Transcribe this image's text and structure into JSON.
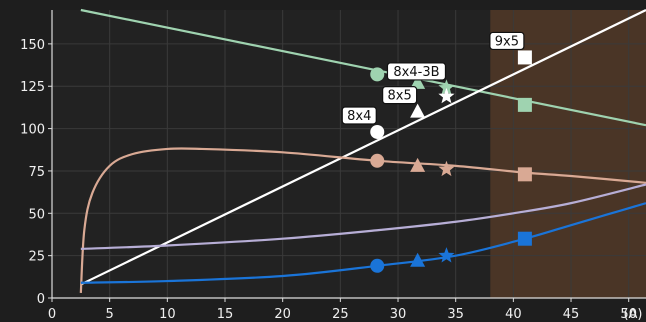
{
  "chart_data": {
    "type": "line",
    "title": "",
    "xlabel": "",
    "ylabel": "",
    "x_unit_label": "(A)",
    "xlim": [
      0,
      51.5
    ],
    "ylim": [
      0,
      170
    ],
    "xticks": [
      0,
      5,
      10,
      15,
      20,
      25,
      30,
      35,
      40,
      45,
      50
    ],
    "yticks": [
      0,
      25,
      50,
      75,
      100,
      125,
      150
    ],
    "grid": true,
    "shaded_region": {
      "x_from": 38,
      "x_to": 51.5,
      "color": "#4a3526"
    },
    "series": [
      {
        "color": "#9fd3b0",
        "line": {
          "x": [
            2.5,
            51.5
          ],
          "y": [
            170,
            102
          ]
        }
      },
      {
        "color": "#ffffff",
        "line": {
          "x": [
            2.5,
            51.5
          ],
          "y": [
            8,
            170
          ]
        }
      },
      {
        "color": "#d9a994",
        "line": {
          "x": [
            2.5,
            2.8,
            3.5,
            5,
            7,
            10,
            13,
            20,
            28.2,
            35,
            41,
            45,
            51.5
          ],
          "y": [
            3,
            40,
            62,
            78,
            85,
            88,
            88,
            86,
            81,
            78,
            74,
            72,
            68
          ]
        }
      },
      {
        "color": "#b7aed6",
        "line": {
          "x": [
            2.5,
            10,
            20,
            28.2,
            35,
            40,
            45,
            51.5
          ],
          "y": [
            29,
            31,
            35,
            40,
            45,
            50,
            56,
            67
          ]
        }
      },
      {
        "color": "#1a74d8",
        "line": {
          "x": [
            2.5,
            10,
            20,
            28.2,
            35,
            41,
            45,
            48,
            51.5
          ],
          "y": [
            9,
            10,
            13,
            19,
            25,
            35,
            43,
            49,
            56
          ]
        }
      }
    ],
    "markers": [
      {
        "x": 28.2,
        "y": 132,
        "shape": "circle",
        "color": "#9fd3b0"
      },
      {
        "x": 31.7,
        "y": 127,
        "shape": "triangle",
        "color": "#9fd3b0"
      },
      {
        "x": 34.2,
        "y": 124,
        "shape": "star",
        "color": "#9fd3b0"
      },
      {
        "x": 41,
        "y": 114,
        "shape": "square",
        "color": "#9fd3b0"
      },
      {
        "x": 28.2,
        "y": 98,
        "shape": "circle",
        "color": "#ffffff"
      },
      {
        "x": 31.7,
        "y": 110,
        "shape": "triangle",
        "color": "#ffffff"
      },
      {
        "x": 34.2,
        "y": 119,
        "shape": "star",
        "color": "#ffffff"
      },
      {
        "x": 41,
        "y": 142,
        "shape": "square",
        "color": "#ffffff"
      },
      {
        "x": 28.2,
        "y": 81,
        "shape": "circle",
        "color": "#d9a994"
      },
      {
        "x": 31.7,
        "y": 78,
        "shape": "triangle",
        "color": "#d9a994"
      },
      {
        "x": 34.2,
        "y": 76,
        "shape": "star",
        "color": "#d9a994"
      },
      {
        "x": 41,
        "y": 73,
        "shape": "square",
        "color": "#d9a994"
      },
      {
        "x": 28.2,
        "y": 19,
        "shape": "circle",
        "color": "#1a74d8"
      },
      {
        "x": 31.7,
        "y": 22,
        "shape": "triangle",
        "color": "#1a74d8"
      },
      {
        "x": 34.2,
        "y": 25,
        "shape": "star",
        "color": "#1a74d8"
      },
      {
        "x": 41,
        "y": 35,
        "shape": "square",
        "color": "#1a74d8"
      }
    ],
    "annotations": [
      {
        "text": "8x4",
        "x": 28.2,
        "y": 98
      },
      {
        "text": "8x5",
        "x": 31.7,
        "y": 110
      },
      {
        "text": "8x4-3B",
        "x": 34.2,
        "y": 124
      },
      {
        "text": "9x5",
        "x": 41,
        "y": 142
      }
    ]
  }
}
